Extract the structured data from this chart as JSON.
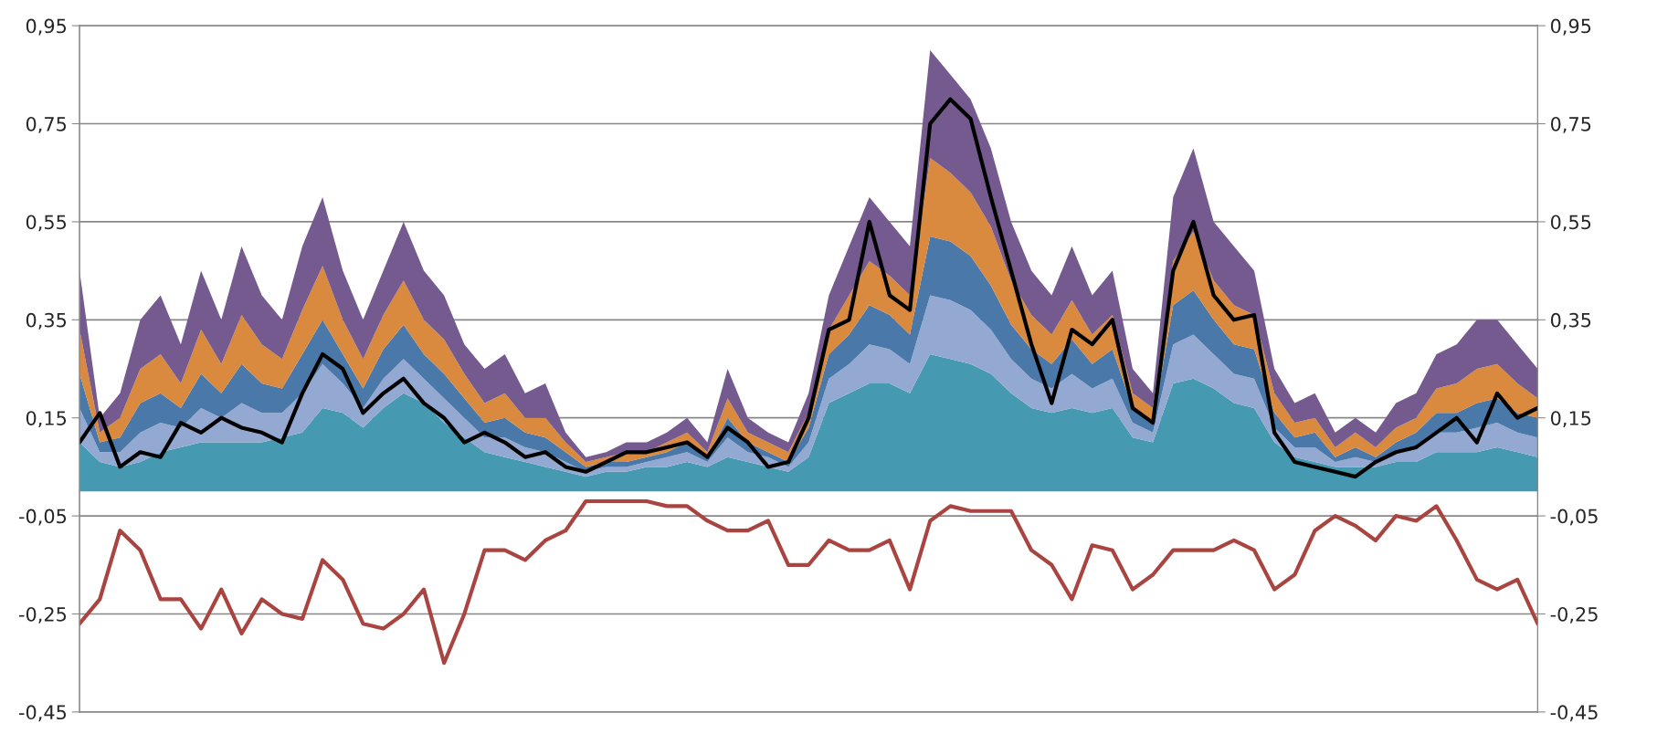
{
  "chart_data": {
    "type": "area",
    "stacked": true,
    "grid": "y",
    "legend": false,
    "tick_labels": "y",
    "categories": [
      null,
      null,
      null,
      null,
      null,
      null,
      null,
      null,
      null,
      null,
      null,
      null,
      null,
      null,
      null,
      null,
      null,
      null,
      null,
      null,
      null,
      null,
      null,
      null,
      null,
      null,
      null,
      null,
      null,
      null,
      null,
      null,
      null,
      null,
      null,
      null,
      null,
      null,
      null,
      null,
      null,
      null,
      null,
      null,
      null,
      null,
      null,
      null,
      null,
      null,
      null,
      null,
      null,
      null,
      null,
      null,
      null,
      null,
      null,
      null,
      null,
      null,
      null,
      null,
      null,
      null,
      null,
      null,
      null,
      null,
      null,
      null,
      null
    ],
    "ylim": [
      -0.45,
      0.95
    ],
    "yticks": [
      {
        "value": -0.45,
        "label": "-0,45"
      },
      {
        "value": -0.25,
        "label": "-0,25"
      },
      {
        "value": -0.05,
        "label": "-0,05"
      },
      {
        "value": 0.15,
        "label": "0,15"
      },
      {
        "value": 0.35,
        "label": "0,35"
      },
      {
        "value": 0.55,
        "label": "0,55"
      },
      {
        "value": 0.75,
        "label": "0,75"
      },
      {
        "value": 0.95,
        "label": "0,95"
      }
    ],
    "y2lim": [
      -0.45,
      0.95
    ],
    "y2ticks": [
      {
        "value": -0.45,
        "label": "-0,45"
      },
      {
        "value": -0.25,
        "label": "-0,25"
      },
      {
        "value": -0.05,
        "label": "-0,05"
      },
      {
        "value": 0.15,
        "label": "0,15"
      },
      {
        "value": 0.35,
        "label": "0,35"
      },
      {
        "value": 0.55,
        "label": "0,55"
      },
      {
        "value": 0.75,
        "label": "0,75"
      },
      {
        "value": 0.95,
        "label": "0,95"
      }
    ],
    "series": [
      {
        "color": "#4599b0",
        "values": [
          0.1,
          0.06,
          0.05,
          0.06,
          0.08,
          0.09,
          0.1,
          0.1,
          0.1,
          0.1,
          0.11,
          0.12,
          0.17,
          0.16,
          0.13,
          0.17,
          0.2,
          0.18,
          0.14,
          0.11,
          0.08,
          0.07,
          0.06,
          0.05,
          0.04,
          0.03,
          0.04,
          0.04,
          0.05,
          0.05,
          0.06,
          0.05,
          0.07,
          0.06,
          0.05,
          0.04,
          0.07,
          0.18,
          0.2,
          0.22,
          0.22,
          0.2,
          0.28,
          0.27,
          0.26,
          0.24,
          0.2,
          0.17,
          0.16,
          0.17,
          0.16,
          0.17,
          0.11,
          0.1,
          0.22,
          0.23,
          0.21,
          0.18,
          0.17,
          0.1,
          0.07,
          0.06,
          0.05,
          0.05,
          0.05,
          0.06,
          0.06,
          0.08,
          0.08,
          0.08,
          0.09,
          0.08,
          0.07
        ]
      },
      {
        "color": "#93a9d1",
        "values": [
          0.07,
          0.02,
          0.03,
          0.06,
          0.06,
          0.04,
          0.07,
          0.05,
          0.08,
          0.06,
          0.05,
          0.08,
          0.09,
          0.06,
          0.04,
          0.06,
          0.07,
          0.05,
          0.05,
          0.04,
          0.03,
          0.04,
          0.03,
          0.03,
          0.02,
          0.01,
          0.01,
          0.01,
          0.01,
          0.02,
          0.02,
          0.01,
          0.04,
          0.02,
          0.02,
          0.01,
          0.03,
          0.05,
          0.06,
          0.08,
          0.07,
          0.06,
          0.12,
          0.12,
          0.11,
          0.09,
          0.07,
          0.06,
          0.05,
          0.07,
          0.05,
          0.06,
          0.03,
          0.02,
          0.08,
          0.09,
          0.07,
          0.06,
          0.06,
          0.03,
          0.02,
          0.03,
          0.01,
          0.02,
          0.01,
          0.02,
          0.03,
          0.04,
          0.04,
          0.05,
          0.05,
          0.04,
          0.04
        ]
      },
      {
        "color": "#4a78a8",
        "values": [
          0.07,
          0.02,
          0.03,
          0.06,
          0.06,
          0.04,
          0.07,
          0.05,
          0.08,
          0.06,
          0.05,
          0.08,
          0.09,
          0.06,
          0.04,
          0.06,
          0.07,
          0.05,
          0.05,
          0.04,
          0.03,
          0.04,
          0.03,
          0.03,
          0.02,
          0.01,
          0.01,
          0.01,
          0.01,
          0.01,
          0.02,
          0.01,
          0.04,
          0.02,
          0.01,
          0.01,
          0.03,
          0.05,
          0.06,
          0.08,
          0.07,
          0.06,
          0.12,
          0.12,
          0.11,
          0.09,
          0.07,
          0.06,
          0.05,
          0.07,
          0.05,
          0.06,
          0.03,
          0.02,
          0.08,
          0.09,
          0.07,
          0.06,
          0.06,
          0.03,
          0.02,
          0.03,
          0.01,
          0.02,
          0.01,
          0.02,
          0.03,
          0.04,
          0.04,
          0.05,
          0.05,
          0.04,
          0.04
        ]
      },
      {
        "color": "#d98a3e",
        "values": [
          0.09,
          0.02,
          0.04,
          0.07,
          0.08,
          0.05,
          0.09,
          0.06,
          0.1,
          0.08,
          0.06,
          0.09,
          0.11,
          0.07,
          0.06,
          0.07,
          0.09,
          0.07,
          0.07,
          0.05,
          0.04,
          0.05,
          0.03,
          0.04,
          0.02,
          0.01,
          0.01,
          0.02,
          0.01,
          0.02,
          0.02,
          0.01,
          0.04,
          0.02,
          0.02,
          0.02,
          0.03,
          0.05,
          0.08,
          0.09,
          0.08,
          0.08,
          0.16,
          0.14,
          0.13,
          0.12,
          0.09,
          0.07,
          0.06,
          0.08,
          0.06,
          0.07,
          0.03,
          0.03,
          0.09,
          0.12,
          0.08,
          0.08,
          0.07,
          0.04,
          0.03,
          0.03,
          0.02,
          0.03,
          0.02,
          0.03,
          0.03,
          0.05,
          0.06,
          0.07,
          0.07,
          0.06,
          0.04
        ]
      },
      {
        "color": "#745a8e",
        "values": [
          0.12,
          0.03,
          0.05,
          0.1,
          0.12,
          0.08,
          0.12,
          0.09,
          0.14,
          0.1,
          0.08,
          0.13,
          0.14,
          0.1,
          0.08,
          0.09,
          0.12,
          0.1,
          0.09,
          0.06,
          0.07,
          0.08,
          0.05,
          0.07,
          0.02,
          0.01,
          0.01,
          0.02,
          0.02,
          0.02,
          0.03,
          0.02,
          0.06,
          0.03,
          0.02,
          0.02,
          0.04,
          0.07,
          0.1,
          0.13,
          0.11,
          0.1,
          0.22,
          0.2,
          0.19,
          0.16,
          0.12,
          0.09,
          0.08,
          0.11,
          0.08,
          0.09,
          0.05,
          0.03,
          0.13,
          0.17,
          0.12,
          0.12,
          0.09,
          0.05,
          0.04,
          0.05,
          0.03,
          0.03,
          0.03,
          0.05,
          0.05,
          0.07,
          0.08,
          0.1,
          0.09,
          0.08,
          0.06
        ]
      },
      {
        "type": "line",
        "color": "#000000",
        "values": [
          0.1,
          0.16,
          0.05,
          0.08,
          0.07,
          0.14,
          0.12,
          0.15,
          0.13,
          0.12,
          0.1,
          0.2,
          0.28,
          0.25,
          0.16,
          0.2,
          0.23,
          0.18,
          0.15,
          0.1,
          0.12,
          0.1,
          0.07,
          0.08,
          0.05,
          0.04,
          0.06,
          0.08,
          0.08,
          0.09,
          0.1,
          0.07,
          0.13,
          0.1,
          0.05,
          0.06,
          0.15,
          0.33,
          0.35,
          0.55,
          0.4,
          0.37,
          0.75,
          0.8,
          0.76,
          0.6,
          0.45,
          0.3,
          0.18,
          0.33,
          0.3,
          0.35,
          0.17,
          0.14,
          0.45,
          0.55,
          0.4,
          0.35,
          0.36,
          0.12,
          0.06,
          0.05,
          0.04,
          0.03,
          0.06,
          0.08,
          0.09,
          0.12,
          0.15,
          0.1,
          0.2,
          0.15,
          0.17
        ]
      },
      {
        "type": "line",
        "color": "#a94440",
        "values": [
          -0.27,
          -0.22,
          -0.08,
          -0.12,
          -0.22,
          -0.22,
          -0.28,
          -0.2,
          -0.29,
          -0.22,
          -0.25,
          -0.26,
          -0.14,
          -0.18,
          -0.27,
          -0.28,
          -0.25,
          -0.2,
          -0.35,
          -0.25,
          -0.12,
          -0.12,
          -0.14,
          -0.1,
          -0.08,
          -0.02,
          -0.02,
          -0.02,
          -0.02,
          -0.03,
          -0.03,
          -0.06,
          -0.08,
          -0.08,
          -0.06,
          -0.15,
          -0.15,
          -0.1,
          -0.12,
          -0.12,
          -0.1,
          -0.2,
          -0.06,
          -0.03,
          -0.04,
          -0.04,
          -0.04,
          -0.12,
          -0.15,
          -0.22,
          -0.11,
          -0.12,
          -0.2,
          -0.17,
          -0.12,
          -0.12,
          -0.12,
          -0.1,
          -0.12,
          -0.2,
          -0.17,
          -0.08,
          -0.05,
          -0.07,
          -0.1,
          -0.05,
          -0.06,
          -0.03,
          -0.1,
          -0.18,
          -0.2,
          -0.18,
          -0.27
        ]
      }
    ]
  }
}
